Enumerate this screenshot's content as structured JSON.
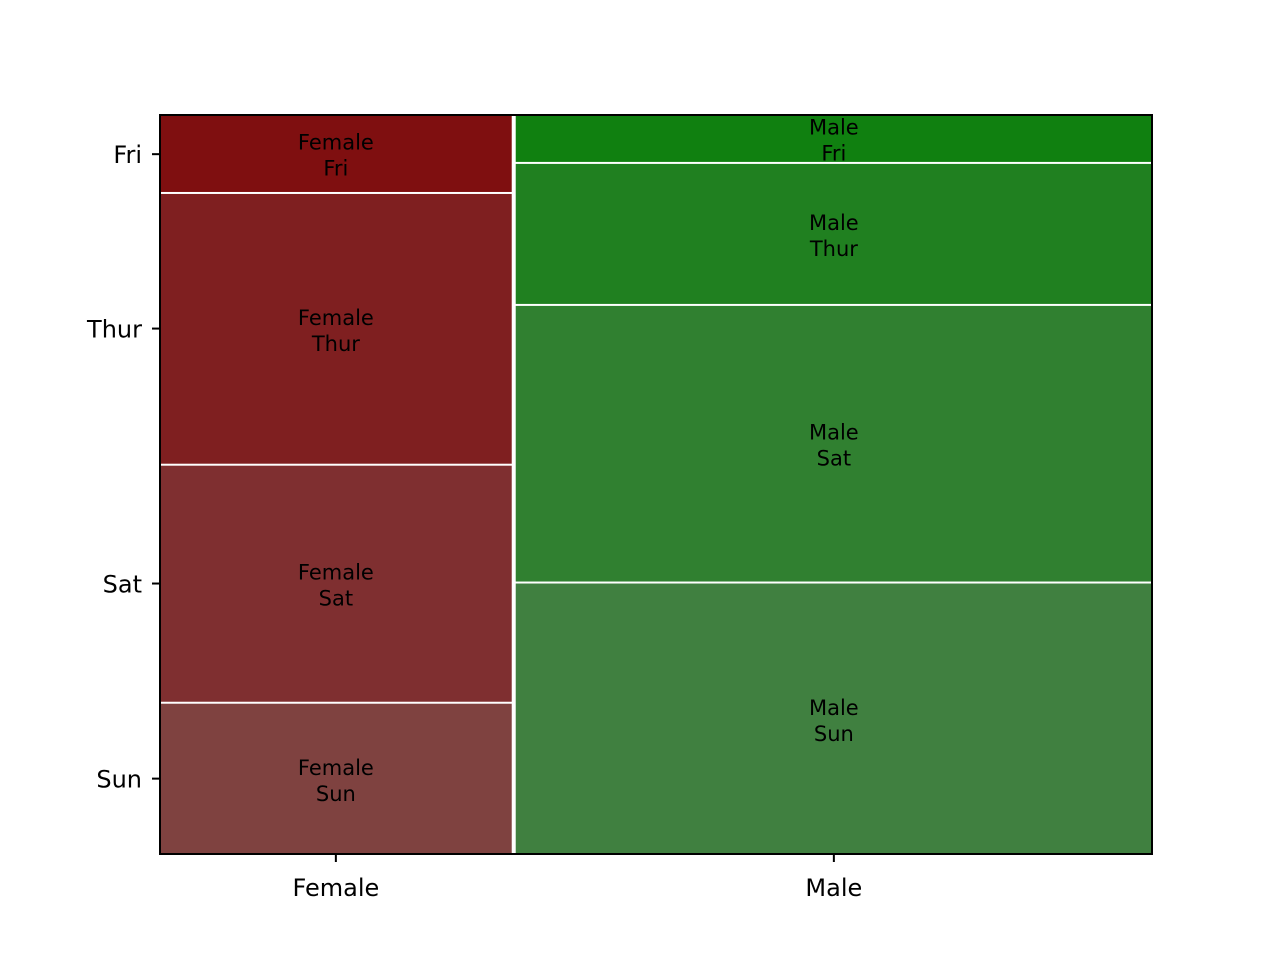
{
  "chart_data": {
    "type": "mosaic",
    "title": "",
    "xlabel": "",
    "ylabel": "",
    "x_categories": [
      "Female",
      "Male"
    ],
    "y_categories": [
      "Sun",
      "Sat",
      "Thur",
      "Fri"
    ],
    "x_proportions": [
      0.356,
      0.644
    ],
    "cells": [
      {
        "x": "Female",
        "y": "Sun",
        "proportion": 0.205,
        "label": [
          "Female",
          "Sun"
        ],
        "color": "#7f4240"
      },
      {
        "x": "Female",
        "y": "Sat",
        "proportion": 0.322,
        "label": [
          "Female",
          "Sat"
        ],
        "color": "#7f2f30"
      },
      {
        "x": "Female",
        "y": "Thur",
        "proportion": 0.368,
        "label": [
          "Female",
          "Thur"
        ],
        "color": "#7f1f20"
      },
      {
        "x": "Female",
        "y": "Fri",
        "proportion": 0.105,
        "label": [
          "Female",
          "Fri"
        ],
        "color": "#7f0f10"
      },
      {
        "x": "Male",
        "y": "Sun",
        "proportion": 0.369,
        "label": [
          "Male",
          "Sun"
        ],
        "color": "#408040"
      },
      {
        "x": "Male",
        "y": "Sat",
        "proportion": 0.376,
        "label": [
          "Male",
          "Sat"
        ],
        "color": "#308030"
      },
      {
        "x": "Male",
        "y": "Thur",
        "proportion": 0.191,
        "label": [
          "Male",
          "Thur"
        ],
        "color": "#208020"
      },
      {
        "x": "Male",
        "y": "Fri",
        "proportion": 0.064,
        "label": [
          "Male",
          "Fri"
        ],
        "color": "#108010"
      }
    ],
    "y_tick_labels": [
      {
        "label": "Sun",
        "position": 0.102
      },
      {
        "label": "Sat",
        "position": 0.366
      },
      {
        "label": "Thur",
        "position": 0.711
      },
      {
        "label": "Fri",
        "position": 0.947
      }
    ],
    "grid": false,
    "legend": "none"
  }
}
